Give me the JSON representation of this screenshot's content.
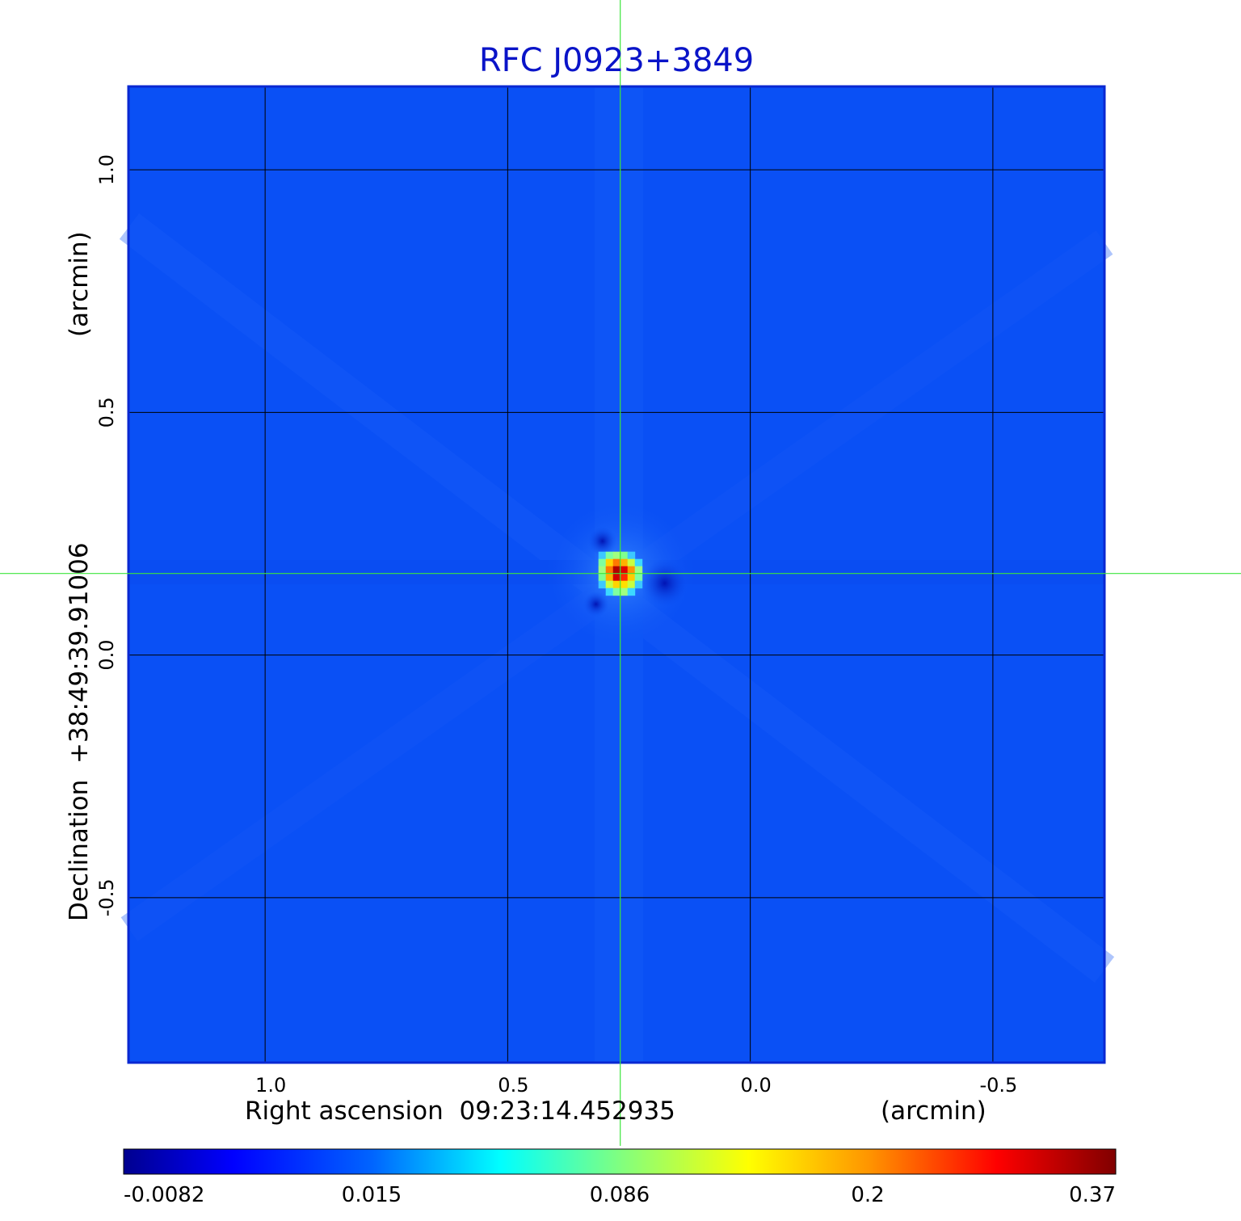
{
  "chart_data": {
    "type": "heatmap",
    "title": "RFC J0923+3849",
    "xlabel": "Right ascension  09:23:14.452935",
    "xunit": "(arcmin)",
    "ylabel": "Declination  +38:49:39.91006",
    "yunit": "(arcmin)",
    "x_ticks": [
      {
        "value": 1.0,
        "label": "1.0"
      },
      {
        "value": 0.5,
        "label": "0.5"
      },
      {
        "value": 0.0,
        "label": "0.0"
      },
      {
        "value": -0.5,
        "label": "-0.5"
      }
    ],
    "y_ticks": [
      {
        "value": 1.0,
        "label": "1.0"
      },
      {
        "value": 0.5,
        "label": "0.5"
      },
      {
        "value": 0.0,
        "label": "0.0"
      },
      {
        "value": -0.5,
        "label": "-0.5"
      }
    ],
    "xlim": [
      1.28,
      -0.73
    ],
    "ylim": [
      -0.84,
      1.17
    ],
    "grid": true,
    "crosshair": {
      "x": 0.268,
      "y": 0.168
    },
    "peak": {
      "x": 0.268,
      "y": 0.168,
      "value": 0.37
    },
    "colorbar": {
      "colormap": "jet",
      "ticks": [
        {
          "value": -0.0082,
          "label": "-0.0082"
        },
        {
          "value": 0.015,
          "label": "0.015"
        },
        {
          "value": 0.086,
          "label": "0.086"
        },
        {
          "value": 0.2,
          "label": "0.2"
        },
        {
          "value": 0.37,
          "label": "0.37"
        }
      ]
    },
    "colors": {
      "title": "#0a14c8",
      "frame": "#0a28d2",
      "grid": "#000000",
      "crosshair": "#3ce63c",
      "background_field": "#0a50f5"
    }
  }
}
